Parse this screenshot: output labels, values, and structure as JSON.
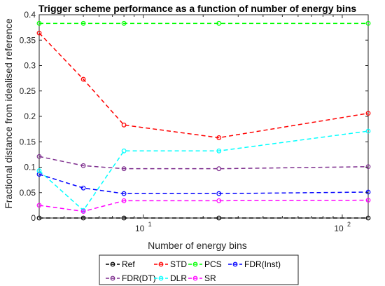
{
  "chart_data": {
    "type": "line",
    "title": "Trigger scheme performance as a function of number of energy bins",
    "xlabel": "Number of energy bins",
    "ylabel": "Fractional distance from idealised reference",
    "xscale": "log",
    "xlim": [
      3,
      135
    ],
    "ylim": [
      0,
      0.4
    ],
    "yticks": [
      0,
      0.05,
      0.1,
      0.15,
      0.2,
      0.25,
      0.3,
      0.35,
      0.4
    ],
    "yticklabels": [
      "0",
      "0.05",
      "0.1",
      "0.15",
      "0.2",
      "0.25",
      "0.3",
      "0.35",
      "0.4"
    ],
    "xticks": [
      10,
      100
    ],
    "xticklabels": [
      {
        "base": "10",
        "exp": "1"
      },
      {
        "base": "10",
        "exp": "2"
      }
    ],
    "grid": false,
    "legend_position": "bottom",
    "x": [
      3,
      5,
      8,
      24,
      135
    ],
    "series": [
      {
        "name": "Ref",
        "color": "#000000",
        "values": [
          0,
          0,
          0,
          0,
          0
        ]
      },
      {
        "name": "STD",
        "color": "#ff0000",
        "values": [
          0.364,
          0.273,
          0.183,
          0.158,
          0.206
        ]
      },
      {
        "name": "PCS",
        "color": "#00ff00",
        "values": [
          0.383,
          0.383,
          0.383,
          0.383,
          0.383
        ]
      },
      {
        "name": "FDR(Inst)",
        "color": "#0000ff",
        "values": [
          0.086,
          0.059,
          0.048,
          0.048,
          0.051
        ]
      },
      {
        "name": "FDR(DT)",
        "color": "#7e2f8e",
        "values": [
          0.121,
          0.103,
          0.097,
          0.097,
          0.101
        ]
      },
      {
        "name": "DLR",
        "color": "#00ffff",
        "values": [
          0.093,
          0.015,
          0.132,
          0.132,
          0.171
        ]
      },
      {
        "name": "SR",
        "color": "#ff00ff",
        "values": [
          0.025,
          0.013,
          0.034,
          0.034,
          0.035
        ]
      }
    ]
  }
}
